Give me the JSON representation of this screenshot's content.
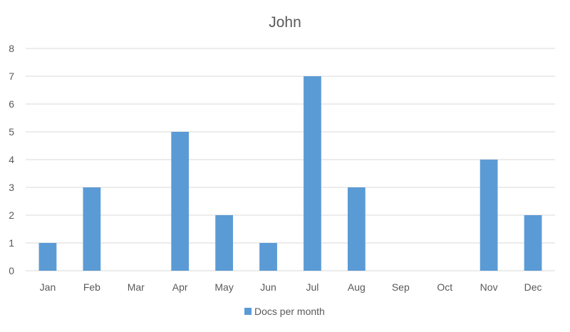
{
  "chart_data": {
    "type": "bar",
    "title": "John",
    "xlabel": "",
    "ylabel": "",
    "categories": [
      "Jan",
      "Feb",
      "Mar",
      "Apr",
      "May",
      "Jun",
      "Jul",
      "Aug",
      "Sep",
      "Oct",
      "Nov",
      "Dec"
    ],
    "series": [
      {
        "name": "Docs per month",
        "values": [
          1,
          3,
          0,
          5,
          2,
          1,
          7,
          3,
          0,
          0,
          4,
          2
        ],
        "color": "#5b9bd5"
      }
    ],
    "ylim": [
      0,
      8
    ],
    "yticks": [
      "0",
      "1",
      "2",
      "3",
      "4",
      "5",
      "6",
      "7",
      "8"
    ],
    "grid": true,
    "legend": "bottom-center",
    "colors": {
      "gridline": "#d9d9d9",
      "text": "#595959"
    }
  }
}
